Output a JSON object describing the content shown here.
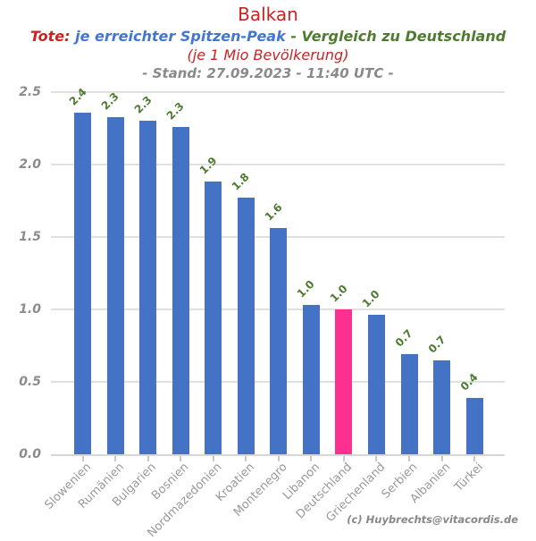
{
  "header": {
    "title": "Balkan",
    "subtitle_parts": {
      "tote": "Tote:",
      "peak": "je erreichter Spitzen-Peak",
      "compare": "- Vergleich zu Deutschland"
    },
    "per_capita_note": "(je 1 Mio Bevölkerung)",
    "stand_line": "- Stand: 27.09.2023 - 11:40 UTC -"
  },
  "footer": {
    "credit": "(c) Huybrechts@vitacordis.de"
  },
  "colors": {
    "title_red": "#cc2222",
    "subtitle_blue": "#4477cc",
    "subtitle_green": "#4e7b30",
    "gray_text": "#8a8a8a",
    "bar_blue": "#4472c4",
    "bar_pink": "#fb3090",
    "value_label_green": "#4e7b30",
    "gridline": "#e0e0e0"
  },
  "chart_data": {
    "type": "bar",
    "title": "Balkan",
    "subtitle": "Tote: je erreichter Spitzen-Peak - Vergleich zu Deutschland (je 1 Mio Bevölkerung) - Stand: 27.09.2023 - 11:40 UTC -",
    "categories": [
      "Slowenien",
      "Rumänien",
      "Bulgarien",
      "Bosnien",
      "Nordmazedonien",
      "Kroatien",
      "Montenegro",
      "Libanon",
      "Deutschland",
      "Griechenland",
      "Serbien",
      "Albanien",
      "Türkei"
    ],
    "values": [
      2.36,
      2.33,
      2.3,
      2.26,
      1.88,
      1.77,
      1.56,
      1.03,
      1.0,
      0.96,
      0.69,
      0.65,
      0.39
    ],
    "bar_labels": [
      "2.4",
      "2.3",
      "2.3",
      "2.3",
      "1.9",
      "1.8",
      "1.6",
      "1.0",
      "1.0",
      "1.0",
      "0.7",
      "0.7",
      "0.4"
    ],
    "highlight_category": "Deutschland",
    "xlabel": "",
    "ylabel": "",
    "ylim": [
      0,
      2.5
    ],
    "yticks": [
      "0.0",
      "0.5",
      "1.0",
      "1.5",
      "2.0",
      "2.5"
    ],
    "grid": true,
    "legend": "none",
    "bar_label_rotation_deg": 45,
    "x_label_rotation_deg": 45
  }
}
